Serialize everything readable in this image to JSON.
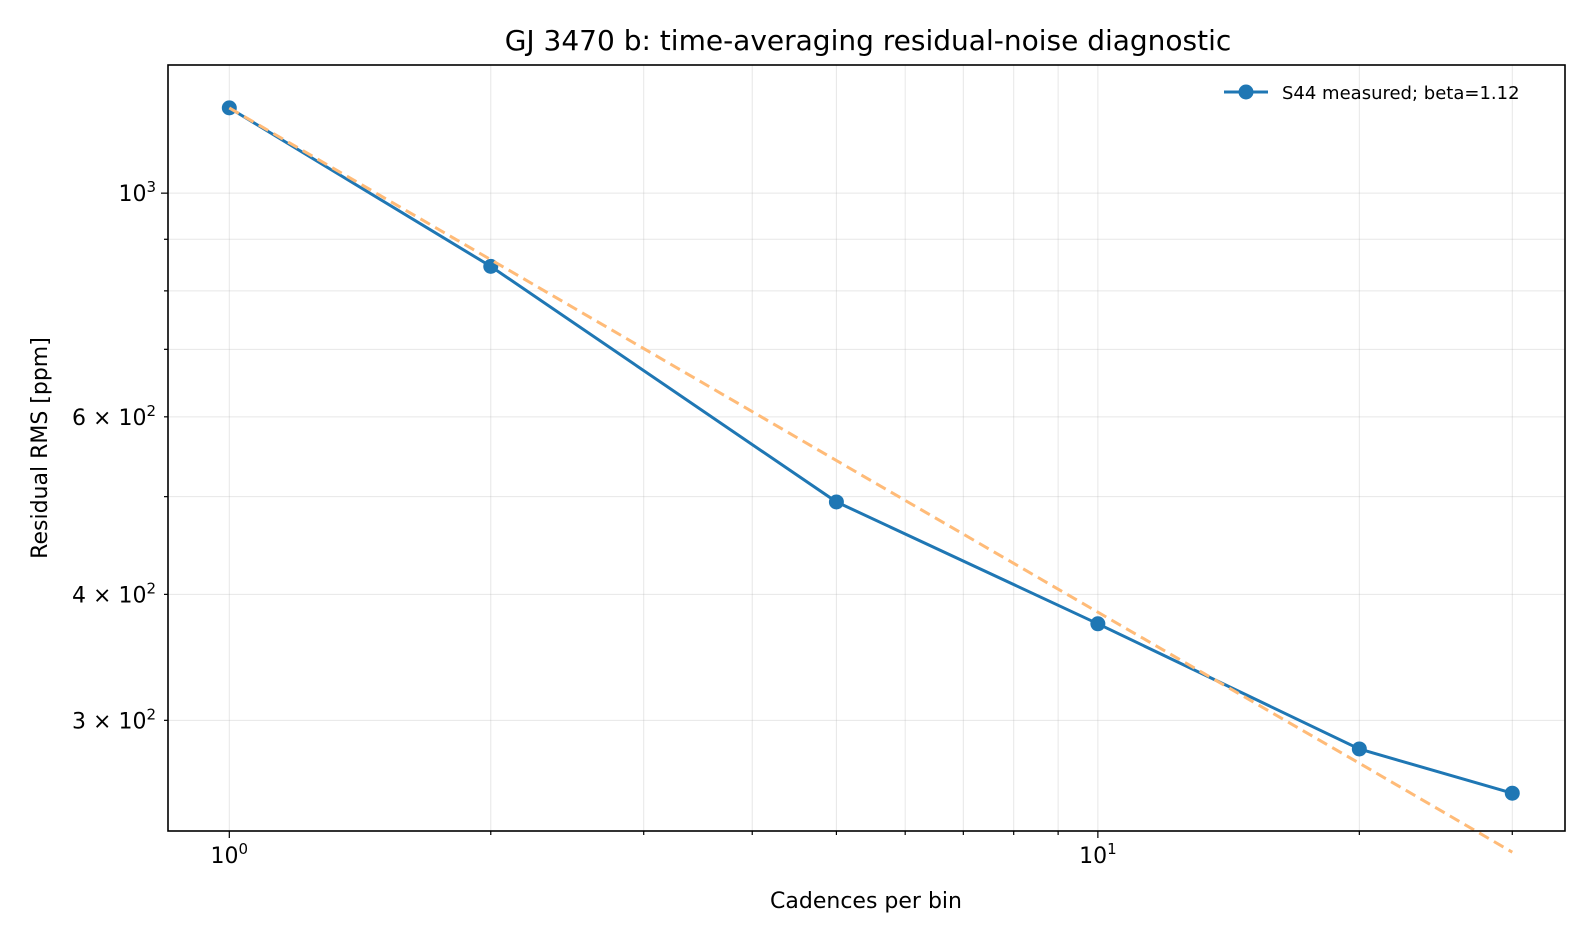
{
  "chart_data": {
    "type": "line",
    "title": "GJ 3470 b: time-averaging residual-noise diagnostic",
    "xlabel": "Cadences per bin",
    "ylabel": "Residual RMS [ppm]",
    "xscale": "log",
    "yscale": "log",
    "xlim": [
      0.85,
      34.5
    ],
    "ylim": [
      233,
      1340
    ],
    "grid": true,
    "legend_position": "top-right",
    "x_ticks": [
      {
        "value": 1,
        "mantissa": "",
        "base": "10",
        "exp": "0"
      },
      {
        "value": 10,
        "mantissa": "",
        "base": "10",
        "exp": "1"
      }
    ],
    "y_ticks": [
      {
        "value": 300,
        "mantissa": "3 × ",
        "base": "10",
        "exp": "2"
      },
      {
        "value": 400,
        "mantissa": "4 × ",
        "base": "10",
        "exp": "2"
      },
      {
        "value": 600,
        "mantissa": "6 × ",
        "base": "10",
        "exp": "2"
      },
      {
        "value": 1000,
        "mantissa": "",
        "base": "10",
        "exp": "3"
      }
    ],
    "series": [
      {
        "name": "S44 measured; beta=1.12",
        "color": "#1f77b4",
        "style": "line-markers",
        "x": [
          1,
          2,
          5,
          10,
          20,
          30
        ],
        "y": [
          1215,
          846,
          494,
          374,
          281,
          254
        ]
      },
      {
        "color": "#ffbb78",
        "style": "dashed",
        "x": [
          1,
          2,
          5,
          10,
          20,
          30
        ],
        "y": [
          1215,
          859,
          543,
          384,
          272,
          222
        ]
      }
    ]
  }
}
